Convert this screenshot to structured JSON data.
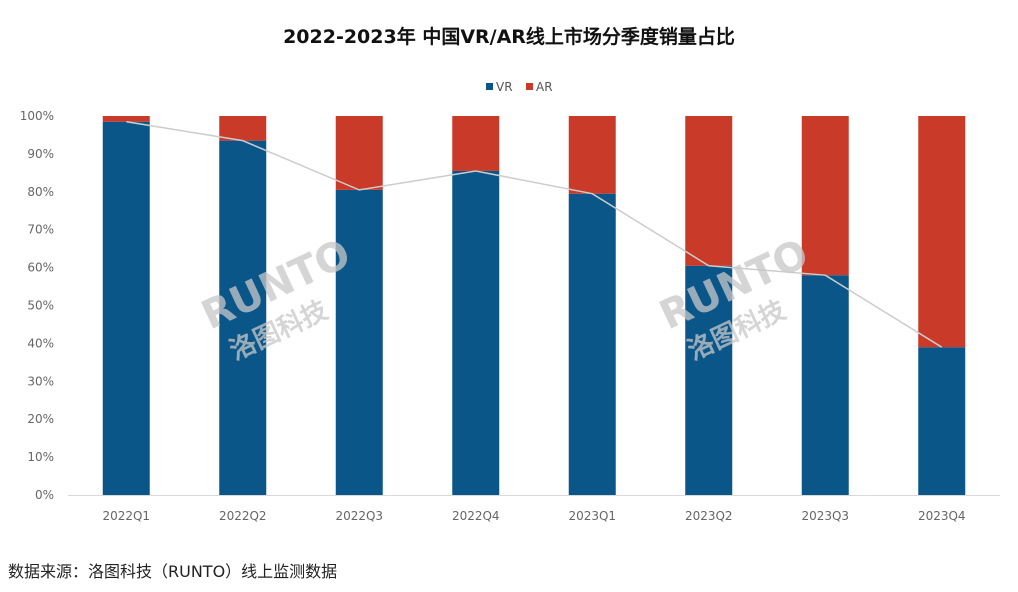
{
  "chart_data": {
    "type": "bar",
    "stacked": true,
    "title": "2022-2023年 中国VR/AR线上市场分季度销量占比",
    "categories": [
      "2022Q1",
      "2022Q2",
      "2022Q3",
      "2022Q4",
      "2023Q1",
      "2023Q2",
      "2023Q3",
      "2023Q4"
    ],
    "series": [
      {
        "name": "VR",
        "color": "#0b5689",
        "values": [
          98.5,
          93.5,
          80.5,
          85.5,
          79.5,
          60.5,
          58,
          39
        ]
      },
      {
        "name": "AR",
        "color": "#c93a28",
        "values": [
          1.5,
          6.5,
          19.5,
          14.5,
          20.5,
          39.5,
          42,
          61
        ]
      }
    ],
    "trend_line": {
      "color": "#cccccc",
      "values": [
        98.5,
        93.5,
        80.5,
        85.5,
        79.5,
        60.5,
        58,
        39
      ]
    },
    "y_ticks": [
      "0%",
      "10%",
      "20%",
      "30%",
      "40%",
      "50%",
      "60%",
      "70%",
      "80%",
      "90%",
      "100%"
    ],
    "ylim": [
      0,
      100
    ],
    "grid": false,
    "legend_position": "top-center",
    "xlabel": "",
    "ylabel": ""
  },
  "watermark": {
    "latin": "RUNTO",
    "cn": "洛图科技"
  },
  "source_text": "数据来源：洛图科技（RUNTO）线上监测数据"
}
